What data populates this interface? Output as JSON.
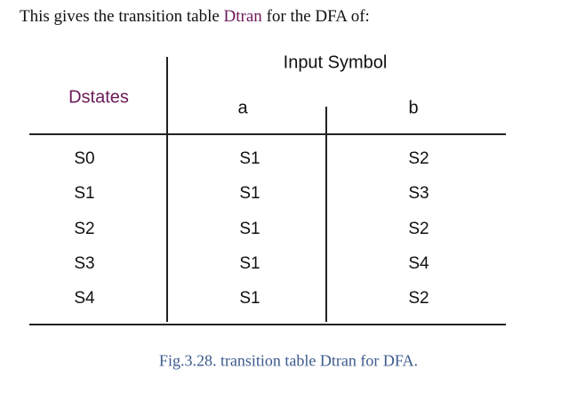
{
  "intro": {
    "before": "This gives the transition table ",
    "term": "Dtran",
    "after": " for the DFA of:"
  },
  "table": {
    "group_header": "Input Symbol",
    "dstates_header": "Dstates",
    "symbols": [
      "a",
      "b"
    ],
    "rows": [
      {
        "state": "S0",
        "a": "S1",
        "b": "S2"
      },
      {
        "state": "S1",
        "a": "S1",
        "b": "S3"
      },
      {
        "state": "S2",
        "a": "S1",
        "b": "S2"
      },
      {
        "state": "S3",
        "a": "S1",
        "b": "S4"
      },
      {
        "state": "S4",
        "a": "S1",
        "b": "S2"
      }
    ]
  },
  "caption": "Fig.3.28. transition table Dtran for DFA.",
  "colors": {
    "dstates": "#6a1b5a",
    "caption": "#3b5a8c"
  }
}
